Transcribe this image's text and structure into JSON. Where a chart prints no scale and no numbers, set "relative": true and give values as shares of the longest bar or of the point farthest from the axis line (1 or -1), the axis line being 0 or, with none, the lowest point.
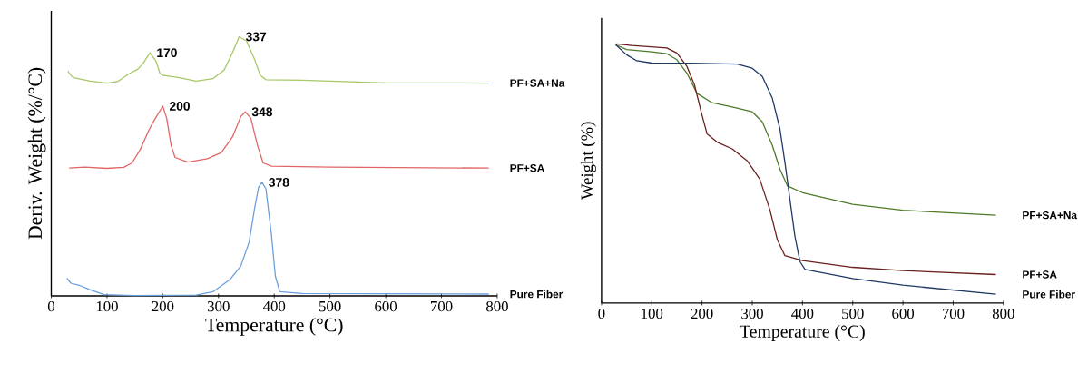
{
  "chart_data": [
    {
      "type": "line",
      "xlabel": "Temperature (°C)",
      "ylabel": "Deriv. Weight (%/°C)",
      "relative": true,
      "legend": false,
      "xlim": [
        0,
        800
      ],
      "xticks": [
        0,
        100,
        200,
        300,
        400,
        500,
        600,
        700,
        800
      ],
      "annotations": [
        {
          "text": "170",
          "x": 177,
          "y": 0.938
        },
        {
          "text": "337",
          "x": 337,
          "y": 1.0
        },
        {
          "text": "200",
          "x": 200,
          "y": 0.732
        },
        {
          "text": "348",
          "x": 348,
          "y": 0.71
        },
        {
          "text": "378",
          "x": 378,
          "y": 0.438
        }
      ],
      "series": [
        {
          "name": "PF+SA+Na",
          "color": "#a6c867",
          "x": [
            30,
            35,
            40,
            70,
            100,
            120,
            140,
            155,
            165,
            177,
            188,
            195,
            200,
            230,
            260,
            290,
            310,
            325,
            337,
            350,
            365,
            375,
            385,
            450,
            600,
            785
          ],
          "values": [
            0.867,
            0.851,
            0.842,
            0.829,
            0.821,
            0.828,
            0.858,
            0.874,
            0.898,
            0.938,
            0.905,
            0.858,
            0.851,
            0.842,
            0.829,
            0.838,
            0.871,
            0.938,
            1.0,
            0.984,
            0.911,
            0.851,
            0.834,
            0.832,
            0.822,
            0.821
          ]
        },
        {
          "name": "PF+SA",
          "color": "#e06666",
          "x": [
            32,
            60,
            100,
            130,
            145,
            160,
            175,
            185,
            200,
            207,
            215,
            222,
            245,
            280,
            305,
            325,
            340,
            348,
            358,
            370,
            380,
            395,
            500,
            785
          ],
          "values": [
            0.493,
            0.497,
            0.492,
            0.496,
            0.513,
            0.566,
            0.639,
            0.679,
            0.732,
            0.686,
            0.58,
            0.534,
            0.516,
            0.529,
            0.553,
            0.613,
            0.692,
            0.71,
            0.686,
            0.58,
            0.513,
            0.5,
            0.497,
            0.493
          ]
        },
        {
          "name": "Pure Fiber",
          "color": "#6a9fdc",
          "x": [
            28,
            35,
            50,
            70,
            95,
            150,
            260,
            290,
            320,
            340,
            355,
            365,
            372,
            378,
            385,
            395,
            402,
            410,
            450,
            785
          ],
          "values": [
            0.069,
            0.049,
            0.041,
            0.023,
            0.005,
            0.001,
            0.003,
            0.016,
            0.062,
            0.115,
            0.208,
            0.341,
            0.42,
            0.438,
            0.414,
            0.235,
            0.076,
            0.016,
            0.009,
            0.007
          ]
        }
      ]
    },
    {
      "type": "line",
      "xlabel": "Temperature (°C)",
      "ylabel": "Weight (%)",
      "relative": true,
      "legend": false,
      "xlim": [
        0,
        800
      ],
      "xticks": [
        0,
        100,
        200,
        300,
        400,
        500,
        600,
        700,
        800
      ],
      "series": [
        {
          "name": "PF+SA+Na",
          "color": "#4f7a28",
          "x": [
            28,
            50,
            100,
            130,
            150,
            170,
            190,
            220,
            260,
            300,
            320,
            340,
            355,
            370,
            400,
            500,
            600,
            785
          ],
          "values": [
            0.997,
            0.978,
            0.969,
            0.962,
            0.939,
            0.887,
            0.809,
            0.773,
            0.757,
            0.738,
            0.699,
            0.608,
            0.517,
            0.452,
            0.426,
            0.381,
            0.358,
            0.339
          ]
        },
        {
          "name": "PF+SA",
          "color": "#6b1f1f",
          "x": [
            30,
            60,
            130,
            150,
            170,
            185,
            200,
            210,
            230,
            260,
            290,
            315,
            335,
            350,
            365,
            400,
            500,
            600,
            785
          ],
          "values": [
            1.0,
            0.994,
            0.984,
            0.965,
            0.913,
            0.842,
            0.725,
            0.653,
            0.621,
            0.595,
            0.549,
            0.478,
            0.361,
            0.244,
            0.183,
            0.164,
            0.138,
            0.125,
            0.11
          ]
        },
        {
          "name": "Pure Fiber",
          "color": "#1f3864",
          "x": [
            28,
            50,
            70,
            100,
            200,
            270,
            300,
            320,
            340,
            355,
            365,
            375,
            385,
            395,
            405,
            500,
            600,
            785
          ],
          "values": [
            0.997,
            0.958,
            0.935,
            0.926,
            0.925,
            0.922,
            0.906,
            0.874,
            0.79,
            0.673,
            0.543,
            0.4,
            0.257,
            0.16,
            0.13,
            0.095,
            0.069,
            0.034
          ]
        }
      ]
    }
  ]
}
